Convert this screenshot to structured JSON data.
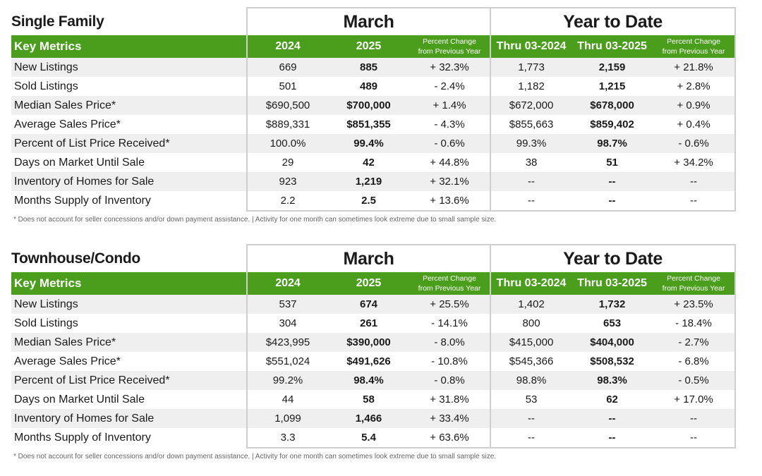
{
  "footnote": "* Does not account for seller concessions and/or down payment assistance.  |  Activity for one month can sometimes look extreme due to small sample size.",
  "sections": [
    {
      "title": "Single Family",
      "group_month": "March",
      "group_ytd": "Year to Date",
      "headers": {
        "key": "Key Metrics",
        "y1": "2024",
        "y2": "2025",
        "pct_line1": "Percent Change",
        "pct_line2": "from Previous Year",
        "ytd1": "Thru 03-2024",
        "ytd2": "Thru 03-2025",
        "ytd_pct_line1": "Percent Change",
        "ytd_pct_line2": "from Previous Year"
      },
      "rows": [
        {
          "metric": "New Listings",
          "v2024": "669",
          "v2025": "885",
          "pct": "+ 32.3%",
          "ytd2024": "1,773",
          "ytd2025": "2,159",
          "ytd_pct": "+ 21.8%"
        },
        {
          "metric": "Sold Listings",
          "v2024": "501",
          "v2025": "489",
          "pct": "- 2.4%",
          "ytd2024": "1,182",
          "ytd2025": "1,215",
          "ytd_pct": "+ 2.8%"
        },
        {
          "metric": "Median Sales Price*",
          "v2024": "$690,500",
          "v2025": "$700,000",
          "pct": "+ 1.4%",
          "ytd2024": "$672,000",
          "ytd2025": "$678,000",
          "ytd_pct": "+ 0.9%"
        },
        {
          "metric": "Average Sales Price*",
          "v2024": "$889,331",
          "v2025": "$851,355",
          "pct": "- 4.3%",
          "ytd2024": "$855,663",
          "ytd2025": "$859,402",
          "ytd_pct": "+ 0.4%"
        },
        {
          "metric": "Percent of List Price Received*",
          "v2024": "100.0%",
          "v2025": "99.4%",
          "pct": "- 0.6%",
          "ytd2024": "99.3%",
          "ytd2025": "98.7%",
          "ytd_pct": "- 0.6%"
        },
        {
          "metric": "Days on Market Until Sale",
          "v2024": "29",
          "v2025": "42",
          "pct": "+ 44.8%",
          "ytd2024": "38",
          "ytd2025": "51",
          "ytd_pct": "+ 34.2%"
        },
        {
          "metric": "Inventory of Homes for Sale",
          "v2024": "923",
          "v2025": "1,219",
          "pct": "+ 32.1%",
          "ytd2024": "--",
          "ytd2025": "--",
          "ytd_pct": "--"
        },
        {
          "metric": "Months Supply of Inventory",
          "v2024": "2.2",
          "v2025": "2.5",
          "pct": "+ 13.6%",
          "ytd2024": "--",
          "ytd2025": "--",
          "ytd_pct": "--"
        }
      ]
    },
    {
      "title": "Townhouse/Condo",
      "group_month": "March",
      "group_ytd": "Year to Date",
      "headers": {
        "key": "Key Metrics",
        "y1": "2024",
        "y2": "2025",
        "pct_line1": "Percent Change",
        "pct_line2": "from Previous Year",
        "ytd1": "Thru 03-2024",
        "ytd2": "Thru 03-2025",
        "ytd_pct_line1": "Percent Change",
        "ytd_pct_line2": "from Previous Year"
      },
      "rows": [
        {
          "metric": "New Listings",
          "v2024": "537",
          "v2025": "674",
          "pct": "+ 25.5%",
          "ytd2024": "1,402",
          "ytd2025": "1,732",
          "ytd_pct": "+ 23.5%"
        },
        {
          "metric": "Sold Listings",
          "v2024": "304",
          "v2025": "261",
          "pct": "- 14.1%",
          "ytd2024": "800",
          "ytd2025": "653",
          "ytd_pct": "- 18.4%"
        },
        {
          "metric": "Median Sales Price*",
          "v2024": "$423,995",
          "v2025": "$390,000",
          "pct": "- 8.0%",
          "ytd2024": "$415,000",
          "ytd2025": "$404,000",
          "ytd_pct": "- 2.7%"
        },
        {
          "metric": "Average Sales Price*",
          "v2024": "$551,024",
          "v2025": "$491,626",
          "pct": "- 10.8%",
          "ytd2024": "$545,366",
          "ytd2025": "$508,532",
          "ytd_pct": "- 6.8%"
        },
        {
          "metric": "Percent of List Price Received*",
          "v2024": "99.2%",
          "v2025": "98.4%",
          "pct": "- 0.8%",
          "ytd2024": "98.8%",
          "ytd2025": "98.3%",
          "ytd_pct": "- 0.5%"
        },
        {
          "metric": "Days on Market Until Sale",
          "v2024": "44",
          "v2025": "58",
          "pct": "+ 31.8%",
          "ytd2024": "53",
          "ytd2025": "62",
          "ytd_pct": "+ 17.0%"
        },
        {
          "metric": "Inventory of Homes for Sale",
          "v2024": "1,099",
          "v2025": "1,466",
          "pct": "+ 33.4%",
          "ytd2024": "--",
          "ytd2025": "--",
          "ytd_pct": "--"
        },
        {
          "metric": "Months Supply of Inventory",
          "v2024": "3.3",
          "v2025": "5.4",
          "pct": "+ 63.6%",
          "ytd2024": "--",
          "ytd2025": "--",
          "ytd_pct": "--"
        }
      ]
    }
  ]
}
